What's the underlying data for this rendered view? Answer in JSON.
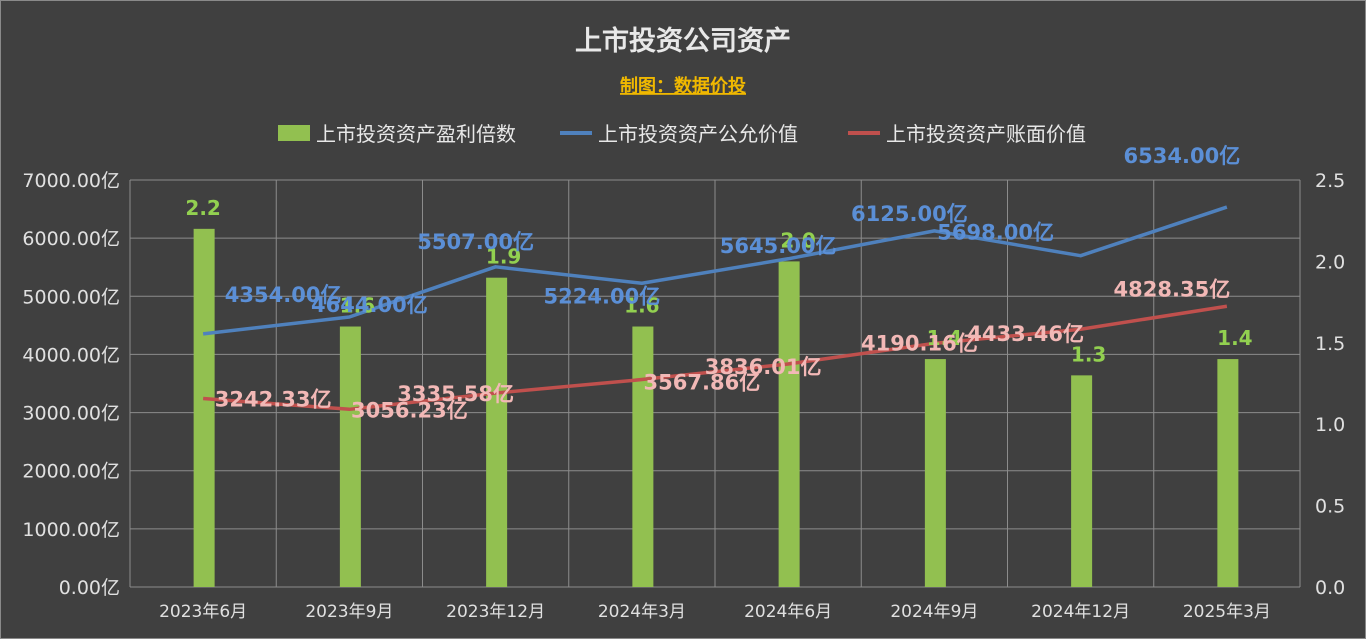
{
  "chart_data": {
    "type": "bar",
    "title": "上市投资公司资产",
    "subtitle": "制图：数据价投",
    "categories": [
      "2023年6月",
      "2023年9月",
      "2023年12月",
      "2024年3月",
      "2024年6月",
      "2024年9月",
      "2024年12月",
      "2025年3月"
    ],
    "y_left": {
      "range": [
        0,
        7000
      ],
      "ticks": [
        "0.00亿",
        "1000.00亿",
        "2000.00亿",
        "3000.00亿",
        "4000.00亿",
        "5000.00亿",
        "6000.00亿",
        "7000.00亿"
      ],
      "tick_values": [
        0,
        1000,
        2000,
        3000,
        4000,
        5000,
        6000,
        7000
      ]
    },
    "y_right": {
      "range": [
        0,
        2.5
      ],
      "ticks": [
        "0.0",
        "0.5",
        "1.0",
        "1.5",
        "2.0",
        "2.5"
      ],
      "tick_values": [
        0,
        0.5,
        1.0,
        1.5,
        2.0,
        2.5
      ]
    },
    "grid": true,
    "legend_position": "top",
    "series": [
      {
        "name": "上市投资资产盈利倍数",
        "type": "bar",
        "axis": "right",
        "color": "#92c050",
        "values": [
          2.2,
          1.6,
          1.9,
          1.6,
          2.0,
          1.4,
          1.3,
          1.4
        ],
        "labels": [
          "2.2",
          "1.6",
          "1.9",
          "1.6",
          "2.0",
          "1.4",
          "1.3",
          "1.4"
        ]
      },
      {
        "name": "上市投资资产公允价值",
        "type": "line",
        "axis": "left",
        "color": "#4f81bd",
        "values": [
          4354.0,
          4644.0,
          5507.0,
          5224.0,
          5645.0,
          6125.0,
          5698.0,
          6534.0
        ],
        "labels": [
          "4354.00亿",
          "4644.00亿",
          "5507.00亿",
          "5224.00亿",
          "5645.00亿",
          "6125.00亿",
          "5698.00亿",
          "6534.00亿"
        ]
      },
      {
        "name": "上市投资资产账面价值",
        "type": "line",
        "axis": "left",
        "color": "#c0504d",
        "values": [
          3242.33,
          3056.23,
          3335.58,
          3567.86,
          3836.01,
          4190.16,
          4433.46,
          4828.35
        ],
        "labels": [
          "3242.33亿",
          "3056.23亿",
          "3335.58亿",
          "3567.86亿",
          "3836.01亿",
          "4190.16亿",
          "4433.46亿",
          "4828.35亿"
        ]
      }
    ]
  }
}
